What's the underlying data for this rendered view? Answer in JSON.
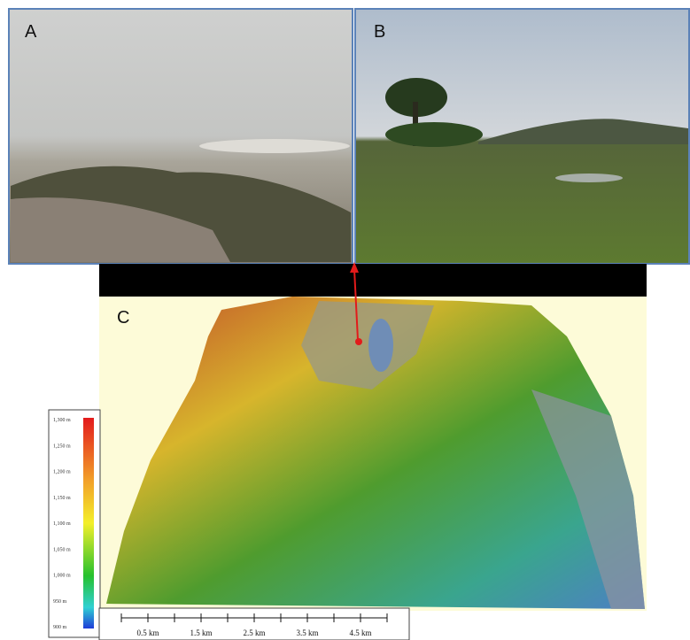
{
  "panels": {
    "a": {
      "label": "A"
    },
    "b": {
      "label": "B"
    },
    "c": {
      "label": "C"
    }
  },
  "legend": {
    "labels": [
      "1,300 m",
      "1,250 m",
      "1,200 m",
      "1,150 m",
      "1,100 m",
      "1,050 m",
      "1,000 m",
      "950 m",
      "900 m"
    ]
  },
  "scale_bar": {
    "labels": [
      "0.5 km",
      "1.5 km",
      "2.5 km",
      "3.5 km",
      "4.5 km"
    ]
  }
}
